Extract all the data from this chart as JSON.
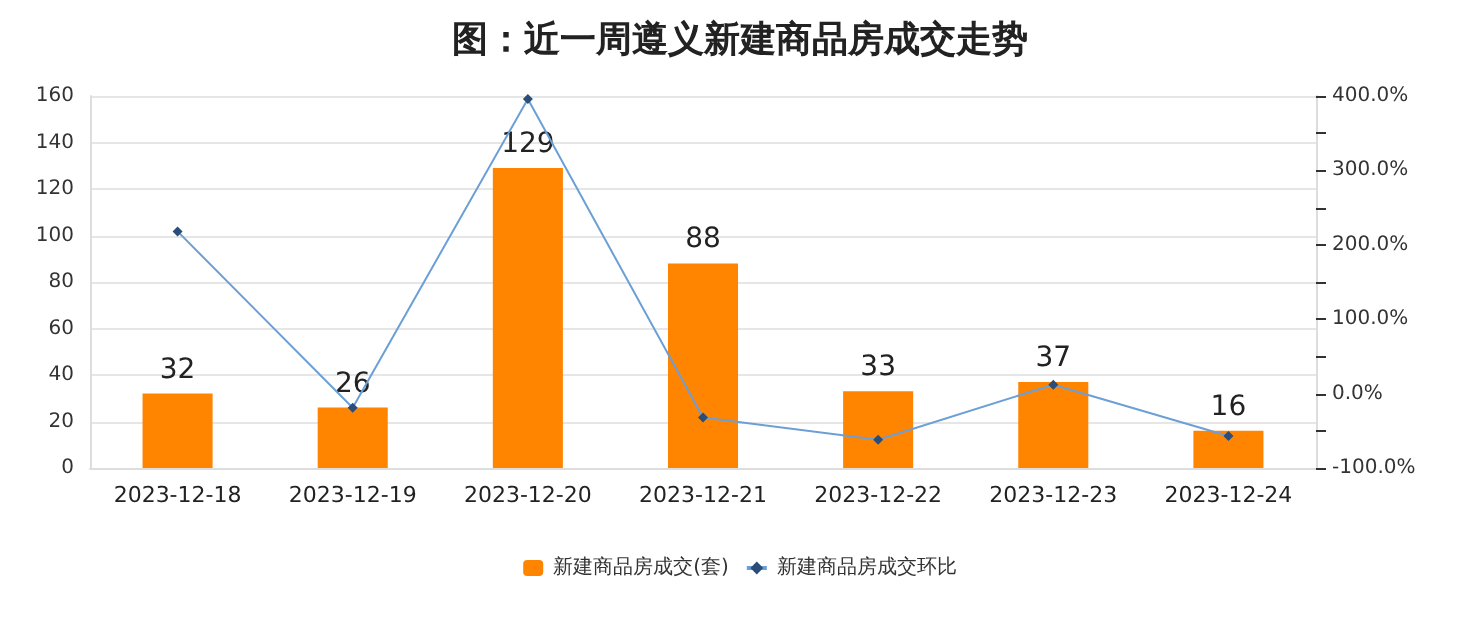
{
  "chart_data": {
    "type": "bar",
    "title": "图：近一周遵义新建商品房成交走势",
    "categories": [
      "2023-12-18",
      "2023-12-19",
      "2023-12-20",
      "2023-12-21",
      "2023-12-22",
      "2023-12-23",
      "2023-12-24"
    ],
    "series": [
      {
        "name": "新建商品房成交(套)",
        "color": "#ff8400",
        "values": [
          32,
          26,
          129,
          88,
          33,
          37,
          16
        ],
        "data_labels": true
      },
      {
        "name": "新建商品房成交环比",
        "type": "line",
        "axis": "y2",
        "color": "#6b9fd6",
        "marker": "diamond",
        "values": [
          218,
          -19,
          396,
          -32,
          -62,
          12,
          -57
        ]
      }
    ],
    "ylim": [
      0,
      160
    ],
    "yticks": [
      0,
      20,
      40,
      60,
      80,
      100,
      120,
      140,
      160
    ],
    "y2lim": [
      -100,
      400
    ],
    "y2ticks": [
      {
        "value": -100,
        "label": "-100.0%"
      },
      {
        "value": -50,
        "label": null
      },
      {
        "value": 0,
        "label": "0.0%"
      },
      {
        "value": 50,
        "label": null
      },
      {
        "value": 100,
        "label": "100.0%"
      },
      {
        "value": 150,
        "label": null
      },
      {
        "value": 200,
        "label": "200.0%"
      },
      {
        "value": 250,
        "label": null
      },
      {
        "value": 300,
        "label": "300.0%"
      },
      {
        "value": 350,
        "label": null
      },
      {
        "value": 400,
        "label": "400.0%"
      }
    ],
    "grid": "y",
    "legend": "bottom"
  }
}
